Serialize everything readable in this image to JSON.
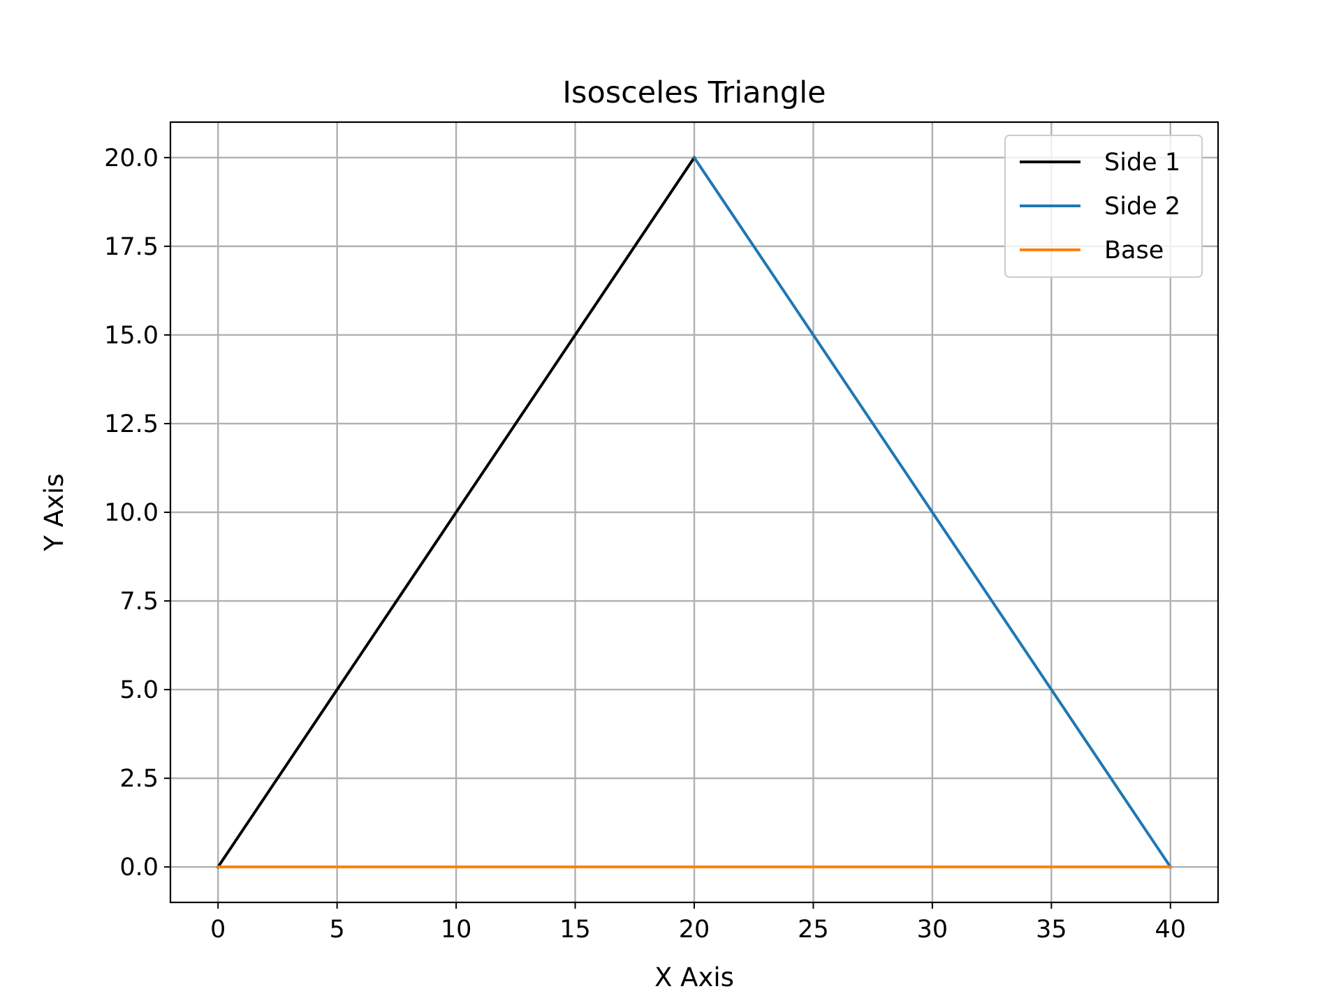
{
  "chart_data": {
    "type": "line",
    "title": "Isosceles Triangle",
    "xlabel": "X Axis",
    "ylabel": "Y Axis",
    "xlim": [
      -2,
      42
    ],
    "ylim": [
      -1,
      21
    ],
    "xticks": [
      0,
      5,
      10,
      15,
      20,
      25,
      30,
      35,
      40
    ],
    "xtick_labels": [
      "0",
      "5",
      "10",
      "15",
      "20",
      "25",
      "30",
      "35",
      "40"
    ],
    "yticks": [
      0,
      2.5,
      5,
      7.5,
      10,
      12.5,
      15,
      17.5,
      20
    ],
    "ytick_labels": [
      "0.0",
      "2.5",
      "5.0",
      "7.5",
      "10.0",
      "12.5",
      "15.0",
      "17.5",
      "20.0"
    ],
    "grid": true,
    "legend_position": "top-right",
    "series": [
      {
        "name": "Side 1",
        "color": "#000000",
        "x": [
          0,
          20
        ],
        "y": [
          0,
          20
        ]
      },
      {
        "name": "Side 2",
        "color": "#1f77b4",
        "x": [
          20,
          40
        ],
        "y": [
          20,
          0
        ]
      },
      {
        "name": "Base",
        "color": "#ff7f0e",
        "x": [
          0,
          40
        ],
        "y": [
          0,
          0
        ]
      }
    ]
  }
}
